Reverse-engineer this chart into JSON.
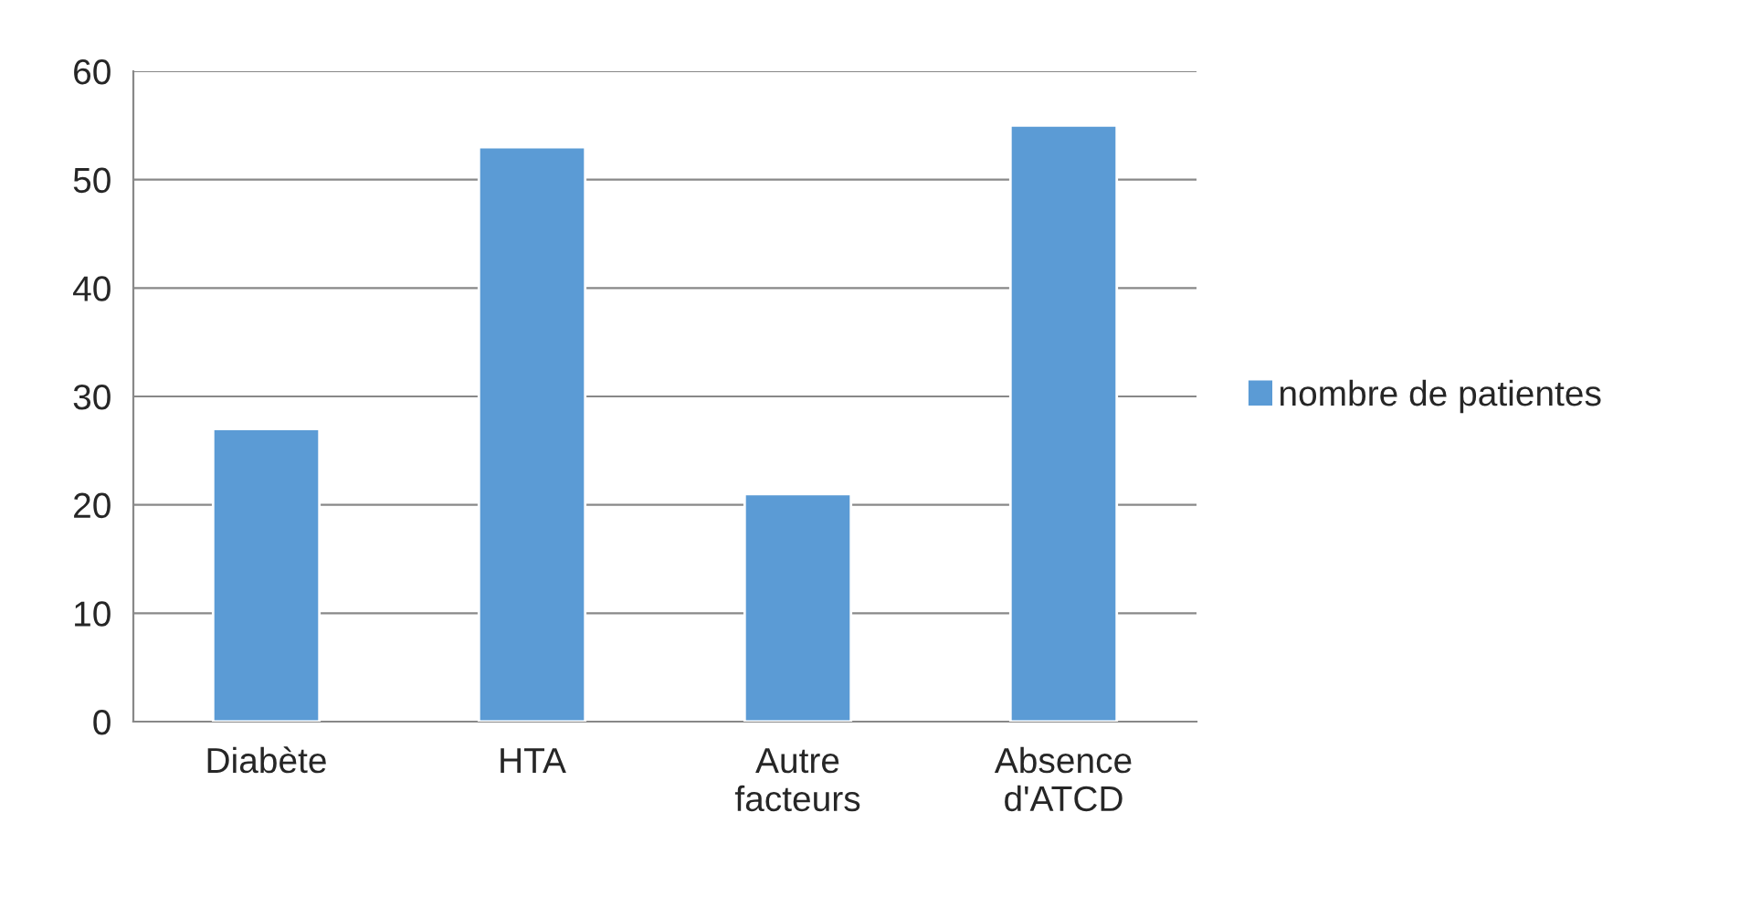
{
  "chart_data": {
    "type": "bar",
    "categories": [
      "Diabète",
      "HTA",
      "Autre\nfacteurs",
      "Absence\nd'ATCD"
    ],
    "series": [
      {
        "name": "nombre de patientes",
        "color": "#5b9bd5",
        "values": [
          27,
          53,
          21,
          55
        ]
      }
    ],
    "ylim": [
      0,
      60
    ],
    "yticks": [
      0,
      10,
      20,
      30,
      40,
      50,
      60
    ],
    "grid": "y",
    "legend": "right"
  }
}
